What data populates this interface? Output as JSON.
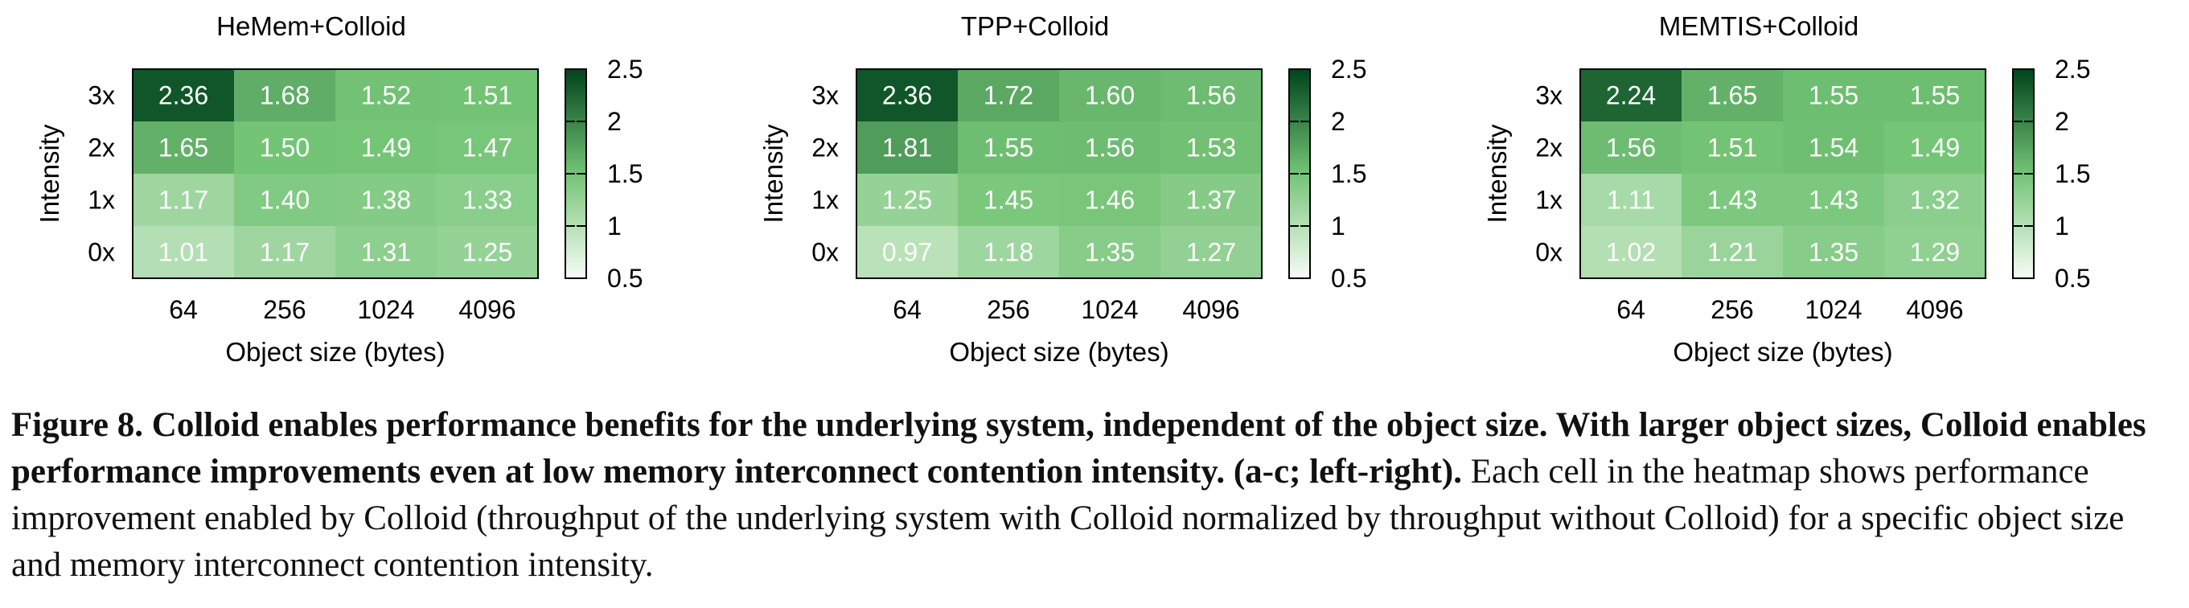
{
  "chart_data": [
    {
      "type": "heatmap",
      "title": "HeMem+Colloid",
      "xlabel": "Object size (bytes)",
      "ylabel": "Intensity",
      "x": [
        "64",
        "256",
        "1024",
        "4096"
      ],
      "y": [
        "3x",
        "2x",
        "1x",
        "0x"
      ],
      "values": [
        [
          2.36,
          1.68,
          1.52,
          1.51
        ],
        [
          1.65,
          1.5,
          1.49,
          1.47
        ],
        [
          1.17,
          1.4,
          1.38,
          1.33
        ],
        [
          1.01,
          1.17,
          1.31,
          1.25
        ]
      ],
      "value_labels": [
        [
          "2.36",
          "1.68",
          "1.52",
          "1.51"
        ],
        [
          "1.65",
          "1.50",
          "1.49",
          "1.47"
        ],
        [
          "1.17",
          "1.40",
          "1.38",
          "1.33"
        ],
        [
          "1.01",
          "1.17",
          "1.31",
          "1.25"
        ]
      ],
      "colorbar": {
        "min": 0.5,
        "max": 2.5,
        "ticks": [
          "2.5",
          "2",
          "1.5",
          "1",
          "0.5"
        ]
      }
    },
    {
      "type": "heatmap",
      "title": "TPP+Colloid",
      "xlabel": "Object size (bytes)",
      "ylabel": "Intensity",
      "x": [
        "64",
        "256",
        "1024",
        "4096"
      ],
      "y": [
        "3x",
        "2x",
        "1x",
        "0x"
      ],
      "values": [
        [
          2.36,
          1.72,
          1.6,
          1.56
        ],
        [
          1.81,
          1.55,
          1.56,
          1.53
        ],
        [
          1.25,
          1.45,
          1.46,
          1.37
        ],
        [
          0.97,
          1.18,
          1.35,
          1.27
        ]
      ],
      "value_labels": [
        [
          "2.36",
          "1.72",
          "1.60",
          "1.56"
        ],
        [
          "1.81",
          "1.55",
          "1.56",
          "1.53"
        ],
        [
          "1.25",
          "1.45",
          "1.46",
          "1.37"
        ],
        [
          "0.97",
          "1.18",
          "1.35",
          "1.27"
        ]
      ],
      "colorbar": {
        "min": 0.5,
        "max": 2.5,
        "ticks": [
          "2.5",
          "2",
          "1.5",
          "1",
          "0.5"
        ]
      }
    },
    {
      "type": "heatmap",
      "title": "MEMTIS+Colloid",
      "xlabel": "Object size (bytes)",
      "ylabel": "Intensity",
      "x": [
        "64",
        "256",
        "1024",
        "4096"
      ],
      "y": [
        "3x",
        "2x",
        "1x",
        "0x"
      ],
      "values": [
        [
          2.24,
          1.65,
          1.55,
          1.55
        ],
        [
          1.56,
          1.51,
          1.54,
          1.49
        ],
        [
          1.11,
          1.43,
          1.43,
          1.32
        ],
        [
          1.02,
          1.21,
          1.35,
          1.29
        ]
      ],
      "value_labels": [
        [
          "2.24",
          "1.65",
          "1.55",
          "1.55"
        ],
        [
          "1.56",
          "1.51",
          "1.54",
          "1.49"
        ],
        [
          "1.11",
          "1.43",
          "1.43",
          "1.32"
        ],
        [
          "1.02",
          "1.21",
          "1.35",
          "1.29"
        ]
      ],
      "colorbar": {
        "min": 0.5,
        "max": 2.5,
        "ticks": [
          "2.5",
          "2",
          "1.5",
          "1",
          "0.5"
        ]
      }
    }
  ],
  "colors": {
    "low": "#f7fcf5",
    "mid": "#74c476",
    "high": "#00441b",
    "text": "#ffffff",
    "border": "#000000"
  },
  "caption": {
    "bold": "Figure 8. Colloid enables performance benefits for the underlying system, independent of the object size. With larger object sizes, Colloid enables performance improvements even at low memory interconnect contention intensity. (a-c; left-right).",
    "normal": " Each cell in the heatmap shows performance improvement enabled by Colloid (throughput of the underlying system with Colloid normalized by throughput without Colloid) for a specific object size and memory interconnect contention intensity."
  }
}
